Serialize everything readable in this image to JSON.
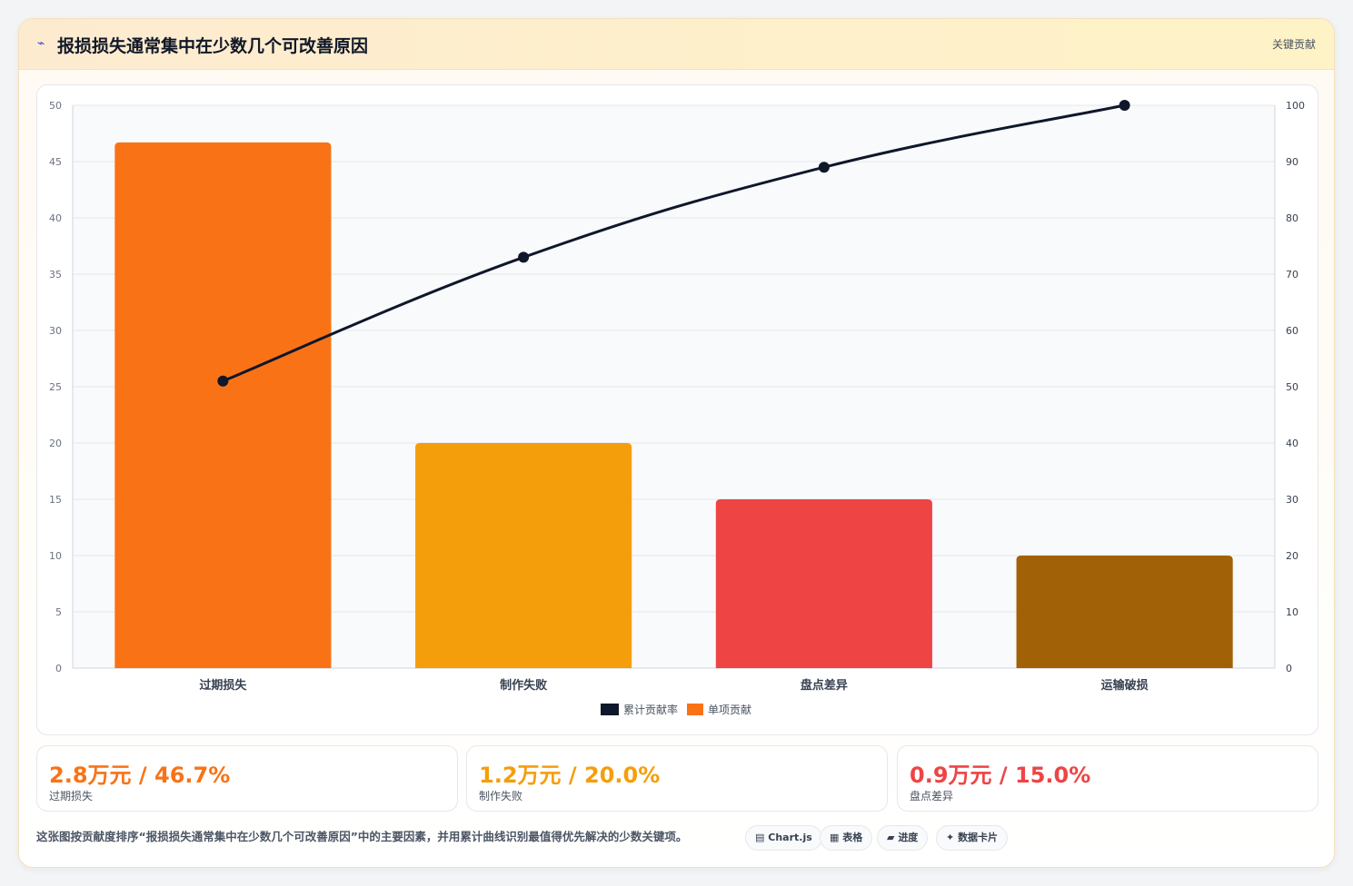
{
  "header": {
    "icon": "pulse-icon",
    "title": "报损损失通常集中在少数几个可改善原因",
    "tag": "关键贡献"
  },
  "chart_data": {
    "type": "bar",
    "categories": [
      "过期损失",
      "制作失败",
      "盘点差异",
      "运输破损"
    ],
    "series": [
      {
        "name": "单项贡献",
        "type": "bar",
        "axis": "left",
        "values": [
          46.7,
          20.0,
          15.0,
          10.0
        ],
        "colors": [
          "#f97316",
          "#f59e0b",
          "#ef4444",
          "#a16207"
        ]
      },
      {
        "name": "累计贡献率",
        "type": "line",
        "axis": "right",
        "values": [
          51,
          73,
          89,
          100
        ],
        "color": "#0f172a"
      }
    ],
    "ylim": [
      0,
      50
    ],
    "yticks": [
      0,
      5,
      10,
      15,
      20,
      25,
      30,
      35,
      40,
      45,
      50
    ],
    "y2lim": [
      0,
      100
    ],
    "y2ticks": [
      0,
      10,
      20,
      30,
      40,
      50,
      60,
      70,
      80,
      90,
      100
    ],
    "grid": true,
    "legend_position": "bottom",
    "legend": [
      {
        "label": "累计贡献率",
        "color": "#0f172a"
      },
      {
        "label": "单项贡献",
        "color": "#f97316"
      }
    ]
  },
  "kpis": [
    {
      "value": "2.8万元 / 46.7%",
      "label": "过期损失",
      "color": "#f97316"
    },
    {
      "value": "1.2万元 / 20.0%",
      "label": "制作失败",
      "color": "#f59e0b"
    },
    {
      "value": "0.9万元 / 15.0%",
      "label": "盘点差异",
      "color": "#ef4444"
    }
  ],
  "footer": {
    "note": "这张图按贡献度排序“报损损失通常集中在少数几个可改善原因”中的主要因素，并用累计曲线识别最值得优先解决的少数关键项。",
    "chips": [
      {
        "icon": "chart-icon",
        "glyph": "▤",
        "label": "Chart.js"
      },
      {
        "icon": "table-icon",
        "glyph": "▦",
        "label": "表格"
      },
      {
        "icon": "progress-icon",
        "glyph": "▰",
        "label": "进度"
      },
      {
        "icon": "sparkle-icon",
        "glyph": "✦",
        "label": "数据卡片"
      }
    ]
  }
}
